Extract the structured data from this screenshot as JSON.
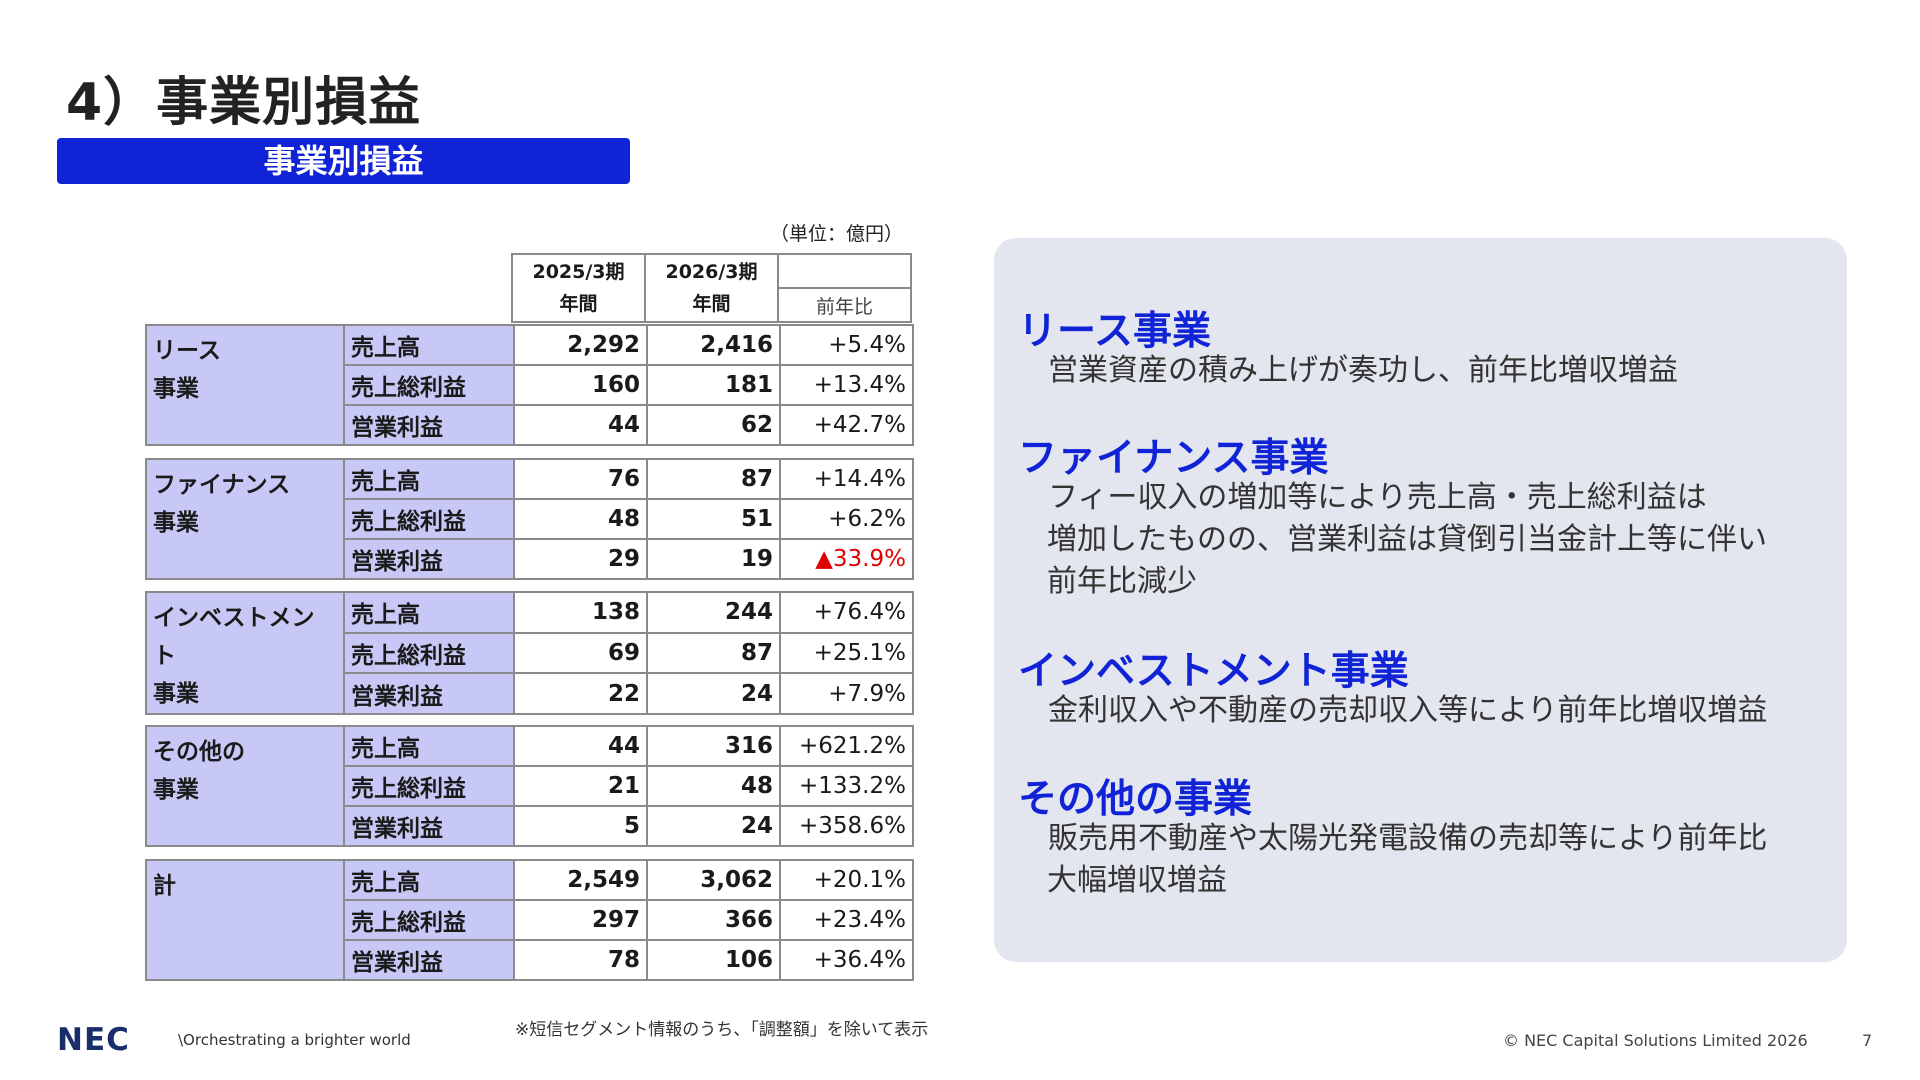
{
  "page": {
    "title": "4）事業別損益",
    "banner": "事業別損益",
    "unit": "（単位：億円）",
    "footnote": "※短信セグメント情報のうち、「調整額」を除いて表示",
    "logo": "NEC",
    "tagline": "\\Orchestrating a brighter world",
    "copyright": "© NEC Capital Solutions Limited 2026",
    "page_number": "7"
  },
  "table": {
    "header": {
      "col1_line1": "2025/3期",
      "col1_line2": "年間",
      "col2_line1": "2026/3期",
      "col2_line2": "年間",
      "col3": "前年比"
    },
    "segments": [
      {
        "name_line1": "リース",
        "name_line2": "事業",
        "rows": [
          {
            "metric": "売上高",
            "fy2025": "2,292",
            "fy2026": "2,416",
            "yoy": "+5.4%"
          },
          {
            "metric": "売上総利益",
            "fy2025": "160",
            "fy2026": "181",
            "yoy": "+13.4%"
          },
          {
            "metric": "営業利益",
            "fy2025": "44",
            "fy2026": "62",
            "yoy": "+42.7%"
          }
        ]
      },
      {
        "name_line1": "ファイナンス",
        "name_line2": "事業",
        "rows": [
          {
            "metric": "売上高",
            "fy2025": "76",
            "fy2026": "87",
            "yoy": "+14.4%"
          },
          {
            "metric": "売上総利益",
            "fy2025": "48",
            "fy2026": "51",
            "yoy": "+6.2%"
          },
          {
            "metric": "営業利益",
            "fy2025": "29",
            "fy2026": "19",
            "yoy": "▲33.9%"
          }
        ]
      },
      {
        "name_line1": "インベストメント",
        "name_line2": "事業",
        "rows": [
          {
            "metric": "売上高",
            "fy2025": "138",
            "fy2026": "244",
            "yoy": "+76.4%"
          },
          {
            "metric": "売上総利益",
            "fy2025": "69",
            "fy2026": "87",
            "yoy": "+25.1%"
          },
          {
            "metric": "営業利益",
            "fy2025": "22",
            "fy2026": "24",
            "yoy": "+7.9%"
          }
        ]
      },
      {
        "name_line1": "その他の",
        "name_line2": "事業",
        "rows": [
          {
            "metric": "売上高",
            "fy2025": "44",
            "fy2026": "316",
            "yoy": "+621.2%"
          },
          {
            "metric": "売上総利益",
            "fy2025": "21",
            "fy2026": "48",
            "yoy": "+133.2%"
          },
          {
            "metric": "営業利益",
            "fy2025": "5",
            "fy2026": "24",
            "yoy": "+358.6%"
          }
        ]
      },
      {
        "name_line1": "計",
        "name_line2": "",
        "rows": [
          {
            "metric": "売上高",
            "fy2025": "2,549",
            "fy2026": "3,062",
            "yoy": "+20.1%"
          },
          {
            "metric": "売上総利益",
            "fy2025": "297",
            "fy2026": "366",
            "yoy": "+23.4%"
          },
          {
            "metric": "営業利益",
            "fy2025": "78",
            "fy2026": "106",
            "yoy": "+36.4%"
          }
        ]
      }
    ],
    "negative_color": "#e00000"
  },
  "panel": {
    "sections": [
      {
        "heading": "リース事業",
        "lines": [
          "営業資産の積み上げが奏功し、前年比増収増益"
        ]
      },
      {
        "heading": "ファイナンス事業",
        "lines": [
          "フィー収入の増加等により売上高・売上総利益は",
          "増加したものの、営業利益は貸倒引当金計上等に伴い",
          "前年比減少"
        ]
      },
      {
        "heading": "インベストメント事業",
        "lines": [
          "金利収入や不動産の売却収入等により前年比増収増益"
        ]
      },
      {
        "heading": "その他の事業",
        "lines": [
          "販売用不動産や太陽光発電設備の売却等により前年比",
          "大幅増収増益"
        ]
      }
    ],
    "accent_color": "#1023d6"
  }
}
